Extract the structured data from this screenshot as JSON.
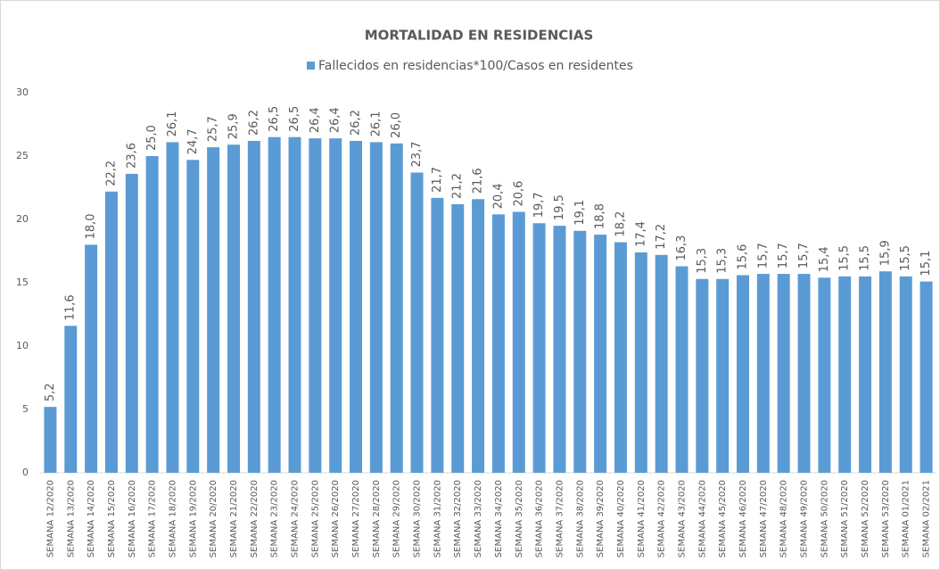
{
  "chart_data": {
    "type": "bar",
    "title": "MORTALIDAD EN RESIDENCIAS",
    "series": [
      {
        "name": "Fallecidos en residencias*100/Casos en residentes",
        "color": "#5b9bd5",
        "values": [
          5.2,
          11.6,
          18.0,
          22.2,
          23.6,
          25.0,
          26.1,
          24.7,
          25.7,
          25.9,
          26.2,
          26.5,
          26.5,
          26.4,
          26.4,
          26.2,
          26.1,
          26.0,
          23.7,
          21.7,
          21.2,
          21.6,
          20.4,
          20.6,
          19.7,
          19.5,
          19.1,
          18.8,
          18.2,
          17.4,
          17.2,
          16.3,
          15.3,
          15.3,
          15.6,
          15.7,
          15.7,
          15.7,
          15.4,
          15.5,
          15.5,
          15.9,
          15.5,
          15.1
        ],
        "value_labels": [
          "5,2",
          "11,6",
          "18,0",
          "22,2",
          "23,6",
          "25,0",
          "26,1",
          "24,7",
          "25,7",
          "25,9",
          "26,2",
          "26,5",
          "26,5",
          "26,4",
          "26,4",
          "26,2",
          "26,1",
          "26,0",
          "23,7",
          "21,7",
          "21,2",
          "21,6",
          "20,4",
          "20,6",
          "19,7",
          "19,5",
          "19,1",
          "18,8",
          "18,2",
          "17,4",
          "17,2",
          "16,3",
          "15,3",
          "15,3",
          "15,6",
          "15,7",
          "15,7",
          "15,7",
          "15,4",
          "15,5",
          "15,5",
          "15,9",
          "15,5",
          "15,1"
        ]
      }
    ],
    "categories": [
      "SEMANA 12/2020",
      "SEMANA 13/2020",
      "SEMANA 14/2020",
      "SEMANA 15/2020",
      "SEMANA 16/2020",
      "SEMANA 17/2020",
      "SEMANA 18/2020",
      "SEMANA 19/2020",
      "SEMANA 20/2020",
      "SEMANA 21/2020",
      "SEMANA 22/2020",
      "SEMANA 23/2020",
      "SEMANA 24/2020",
      "SEMANA 25/2020",
      "SEMANA 26/2020",
      "SEMANA 27/2020",
      "SEMANA 28/2020",
      "SEMANA 29/2020",
      "SEMANA 30/2020",
      "SEMANA 31/2020",
      "SEMANA 32/2020",
      "SEMANA 33/2020",
      "SEMANA 34/2020",
      "SEMANA 35/2020",
      "SEMANA 36/2020",
      "SEMANA 37/2020",
      "SEMANA 38/2020",
      "SEMANA 39/2020",
      "SEMANA 40/2020",
      "SEMANA 41/2020",
      "SEMANA 42/2020",
      "SEMANA 43/2020",
      "SEMANA 44/2020",
      "SEMANA 45/2020",
      "SEMANA 46/2020",
      "SEMANA 47/2020",
      "SEMANA 48/2020",
      "SEMANA 49/2020",
      "SEMANA 50/2020",
      "SEMANA 51/2020",
      "SEMANA 52/2020",
      "SEMANA 53/2020",
      "SEMANA 01/2021",
      "SEMANA 02/2021"
    ],
    "ylim": [
      0,
      30
    ],
    "yticks": [
      0,
      5,
      10,
      15,
      20,
      25,
      30
    ],
    "legend": "top",
    "grid": false
  }
}
